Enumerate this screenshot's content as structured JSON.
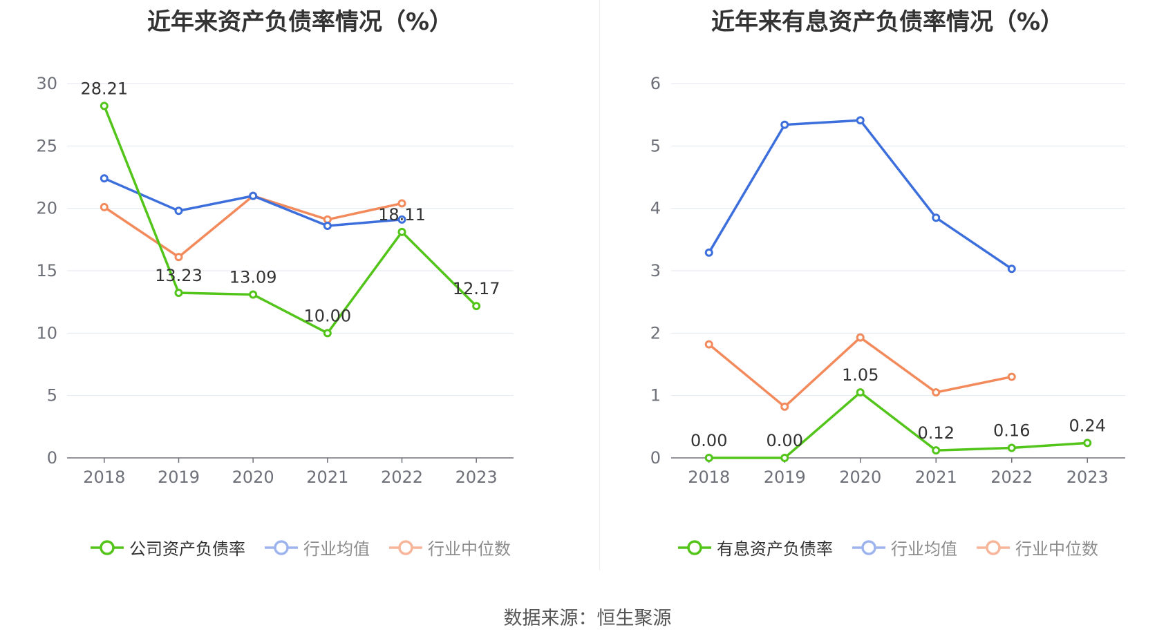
{
  "source_label": "数据来源：恒生聚源",
  "chart_data": [
    {
      "type": "line",
      "title": "近年来资产负债率情况（%）",
      "categories": [
        "2018",
        "2019",
        "2020",
        "2021",
        "2022",
        "2023"
      ],
      "y_ticks": [
        "0",
        "5",
        "10",
        "15",
        "20",
        "25",
        "30"
      ],
      "ylim": [
        0,
        30
      ],
      "grid": true,
      "legend_position": "bottom",
      "series": [
        {
          "name": "公司资产负债率",
          "color": "#52c41a",
          "values": [
            28.21,
            13.23,
            13.09,
            10.0,
            18.11,
            12.17
          ],
          "labels": [
            "28.21",
            "13.23",
            "13.09",
            "10.00",
            "18.11",
            "12.17"
          ]
        },
        {
          "name": "行业均值",
          "color": "#3c6fdc",
          "values": [
            22.4,
            19.8,
            21.0,
            18.6,
            19.1,
            null
          ]
        },
        {
          "name": "行业中位数",
          "color": "#f28a5c",
          "values": [
            20.1,
            16.1,
            21.0,
            19.1,
            20.4,
            null
          ]
        }
      ]
    },
    {
      "type": "line",
      "title": "近年来有息资产负债率情况（%）",
      "categories": [
        "2018",
        "2019",
        "2020",
        "2021",
        "2022",
        "2023"
      ],
      "y_ticks": [
        "0",
        "1",
        "2",
        "3",
        "4",
        "5",
        "6"
      ],
      "ylim": [
        0,
        6
      ],
      "grid": true,
      "legend_position": "bottom",
      "series": [
        {
          "name": "有息资产负债率",
          "color": "#52c41a",
          "values": [
            0.0,
            0.0,
            1.05,
            0.12,
            0.16,
            0.24
          ],
          "labels": [
            "0.00",
            "0.00",
            "1.05",
            "0.12",
            "0.16",
            "0.24"
          ]
        },
        {
          "name": "行业均值",
          "color": "#3c6fdc",
          "values": [
            3.29,
            5.34,
            5.41,
            3.85,
            3.03,
            null
          ]
        },
        {
          "name": "行业中位数",
          "color": "#f28a5c",
          "values": [
            1.82,
            0.82,
            1.93,
            1.05,
            1.3,
            null
          ]
        }
      ]
    }
  ]
}
